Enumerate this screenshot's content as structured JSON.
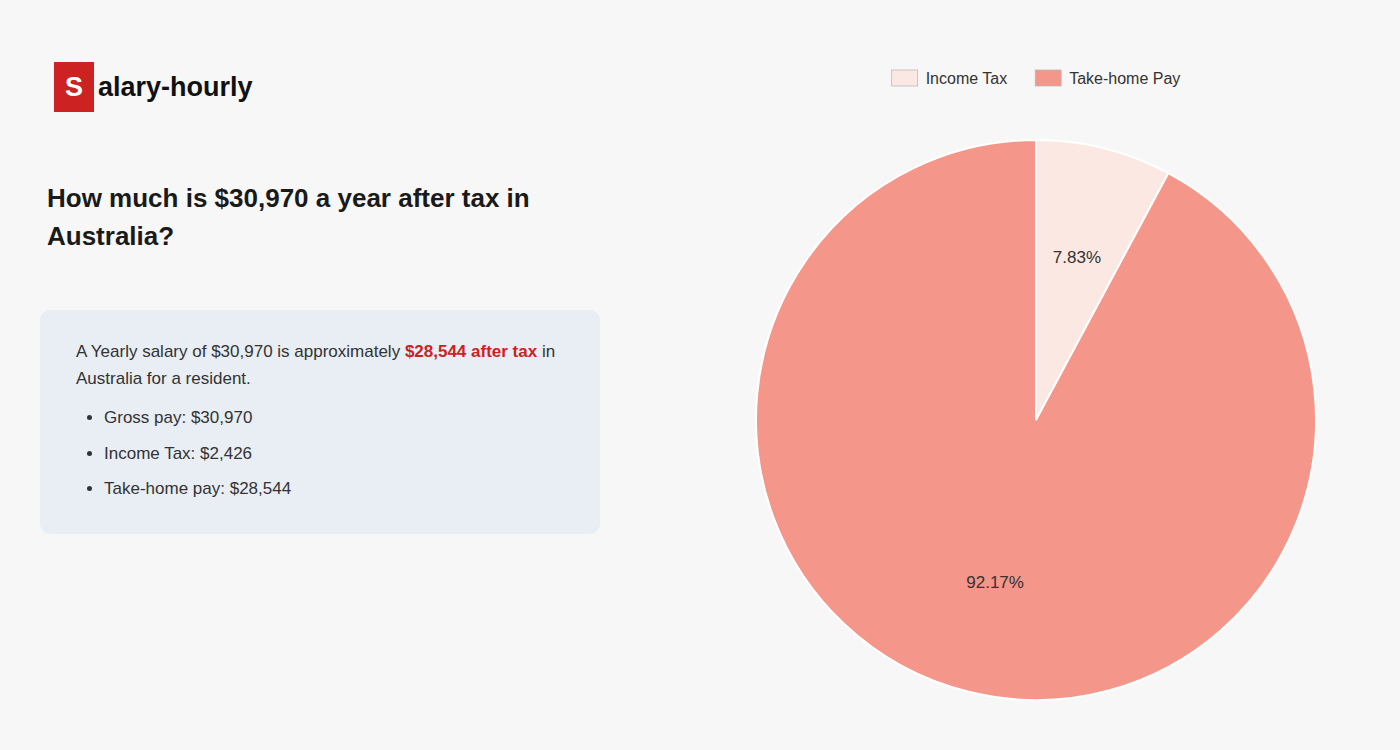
{
  "chart_data": {
    "type": "pie",
    "title": "How much is $30,970 a year after tax in Australia?",
    "categories": [
      "Income Tax",
      "Take-home Pay"
    ],
    "values": [
      7.83,
      92.17
    ],
    "value_labels": [
      "7.83%",
      "92.17%"
    ],
    "colors": [
      "#fce8e2",
      "#f4968a"
    ],
    "data_labels": true,
    "legend": "top",
    "annotations": [
      "S",
      "alary-hourly",
      "A Yearly salary of $30,970 is approximately ",
      "$28,544 after tax",
      " in",
      "Australia for a resident.",
      "Gross pay: $30,970",
      "Income Tax: $2,426",
      "Take-home pay: $28,544"
    ]
  }
}
